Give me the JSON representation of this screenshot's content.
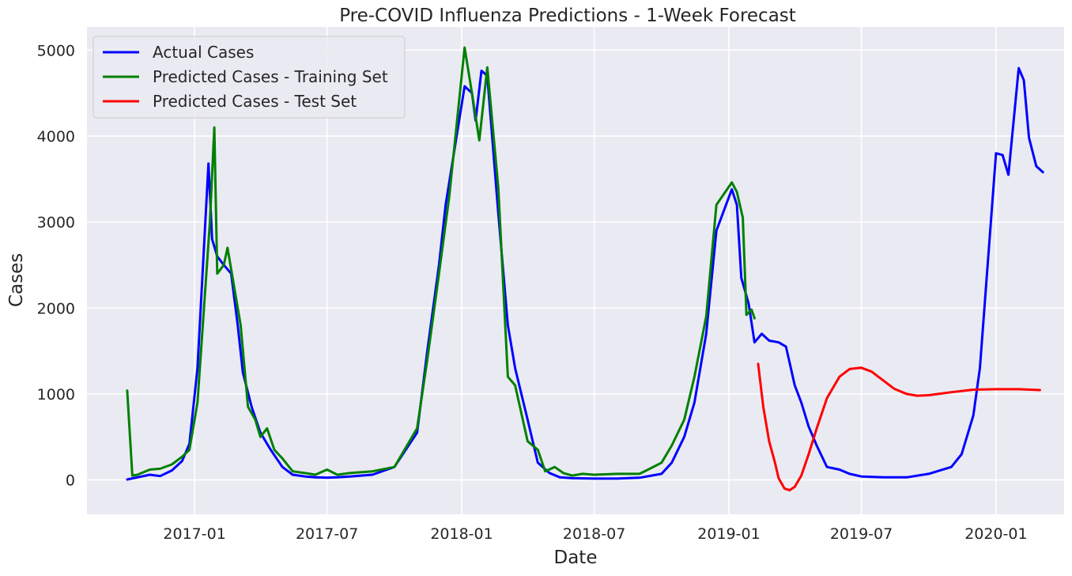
{
  "chart_data": {
    "type": "line",
    "title": "Pre-COVID Influenza Predictions - 1-Week Forecast",
    "xlabel": "Date",
    "ylabel": "Cases",
    "x_ticks": [
      "2017-01",
      "2017-07",
      "2018-01",
      "2018-07",
      "2019-01",
      "2019-07",
      "2020-01"
    ],
    "y_ticks": [
      0,
      1000,
      2000,
      3000,
      4000,
      5000
    ],
    "xlim": [
      "2016-08-07",
      "2020-04-03"
    ],
    "ylim": [
      -400,
      5270
    ],
    "grid": true,
    "background_color": "#EAEAF2",
    "legend_position": "top-left",
    "series": [
      {
        "name": "Actual Cases",
        "color": "#0000FF",
        "points": [
          [
            "2016-10-01",
            5
          ],
          [
            "2016-10-15",
            30
          ],
          [
            "2016-11-01",
            60
          ],
          [
            "2016-11-15",
            45
          ],
          [
            "2016-12-01",
            110
          ],
          [
            "2016-12-15",
            220
          ],
          [
            "2016-12-25",
            420
          ],
          [
            "2017-01-05",
            1300
          ],
          [
            "2017-01-20",
            3680
          ],
          [
            "2017-01-25",
            2800
          ],
          [
            "2017-02-01",
            2600
          ],
          [
            "2017-02-10",
            2500
          ],
          [
            "2017-02-20",
            2400
          ],
          [
            "2017-03-01",
            1800
          ],
          [
            "2017-03-08",
            1250
          ],
          [
            "2017-03-20",
            850
          ],
          [
            "2017-04-01",
            550
          ],
          [
            "2017-04-15",
            350
          ],
          [
            "2017-05-01",
            150
          ],
          [
            "2017-05-15",
            60
          ],
          [
            "2017-06-01",
            40
          ],
          [
            "2017-06-15",
            30
          ],
          [
            "2017-07-01",
            25
          ],
          [
            "2017-07-15",
            30
          ],
          [
            "2017-08-01",
            40
          ],
          [
            "2017-09-01",
            60
          ],
          [
            "2017-10-01",
            150
          ],
          [
            "2017-11-01",
            550
          ],
          [
            "2017-11-15",
            1500
          ],
          [
            "2017-12-01",
            2500
          ],
          [
            "2017-12-10",
            3200
          ],
          [
            "2018-01-05",
            4580
          ],
          [
            "2018-01-15",
            4500
          ],
          [
            "2018-01-20",
            4180
          ],
          [
            "2018-01-28",
            4760
          ],
          [
            "2018-02-05",
            4700
          ],
          [
            "2018-02-20",
            3100
          ],
          [
            "2018-03-05",
            1800
          ],
          [
            "2018-03-15",
            1300
          ],
          [
            "2018-04-01",
            700
          ],
          [
            "2018-04-15",
            200
          ],
          [
            "2018-05-01",
            80
          ],
          [
            "2018-05-15",
            30
          ],
          [
            "2018-06-01",
            20
          ],
          [
            "2018-07-01",
            15
          ],
          [
            "2018-08-01",
            15
          ],
          [
            "2018-09-01",
            25
          ],
          [
            "2018-10-01",
            70
          ],
          [
            "2018-10-15",
            200
          ],
          [
            "2018-11-01",
            500
          ],
          [
            "2018-11-15",
            900
          ],
          [
            "2018-12-01",
            1700
          ],
          [
            "2018-12-15",
            2900
          ],
          [
            "2019-01-05",
            3380
          ],
          [
            "2019-01-12",
            3200
          ],
          [
            "2019-01-18",
            2350
          ],
          [
            "2019-01-28",
            2050
          ],
          [
            "2019-02-05",
            1600
          ],
          [
            "2019-02-15",
            1700
          ],
          [
            "2019-02-25",
            1620
          ],
          [
            "2019-03-10",
            1600
          ],
          [
            "2019-03-20",
            1550
          ],
          [
            "2019-04-01",
            1100
          ],
          [
            "2019-04-10",
            900
          ],
          [
            "2019-04-20",
            620
          ],
          [
            "2019-05-01",
            400
          ],
          [
            "2019-05-15",
            150
          ],
          [
            "2019-06-01",
            120
          ],
          [
            "2019-06-15",
            70
          ],
          [
            "2019-07-01",
            40
          ],
          [
            "2019-08-01",
            30
          ],
          [
            "2019-09-01",
            30
          ],
          [
            "2019-10-01",
            70
          ],
          [
            "2019-11-01",
            150
          ],
          [
            "2019-11-15",
            300
          ],
          [
            "2019-12-01",
            750
          ],
          [
            "2019-12-10",
            1300
          ],
          [
            "2020-01-01",
            3800
          ],
          [
            "2020-01-10",
            3780
          ],
          [
            "2020-01-18",
            3550
          ],
          [
            "2020-02-01",
            4790
          ],
          [
            "2020-02-08",
            4650
          ],
          [
            "2020-02-15",
            3980
          ],
          [
            "2020-02-25",
            3650
          ],
          [
            "2020-03-05",
            3580
          ]
        ]
      },
      {
        "name": "Predicted Cases - Training Set",
        "color": "#008000",
        "points": [
          [
            "2016-10-01",
            1040
          ],
          [
            "2016-10-08",
            50
          ],
          [
            "2016-10-15",
            60
          ],
          [
            "2016-11-01",
            120
          ],
          [
            "2016-11-15",
            130
          ],
          [
            "2016-12-01",
            180
          ],
          [
            "2016-12-15",
            270
          ],
          [
            "2016-12-25",
            350
          ],
          [
            "2017-01-05",
            900
          ],
          [
            "2017-01-22",
            3000
          ],
          [
            "2017-01-28",
            4100
          ],
          [
            "2017-02-01",
            2400
          ],
          [
            "2017-02-10",
            2500
          ],
          [
            "2017-02-15",
            2700
          ],
          [
            "2017-02-25",
            2200
          ],
          [
            "2017-03-05",
            1800
          ],
          [
            "2017-03-15",
            850
          ],
          [
            "2017-03-25",
            700
          ],
          [
            "2017-04-01",
            500
          ],
          [
            "2017-04-10",
            600
          ],
          [
            "2017-04-20",
            350
          ],
          [
            "2017-05-01",
            250
          ],
          [
            "2017-05-15",
            100
          ],
          [
            "2017-06-01",
            80
          ],
          [
            "2017-06-15",
            60
          ],
          [
            "2017-07-01",
            120
          ],
          [
            "2017-07-15",
            60
          ],
          [
            "2017-08-01",
            80
          ],
          [
            "2017-09-01",
            100
          ],
          [
            "2017-10-01",
            150
          ],
          [
            "2017-11-01",
            600
          ],
          [
            "2017-11-15",
            1400
          ],
          [
            "2017-12-01",
            2400
          ],
          [
            "2017-12-15",
            3300
          ],
          [
            "2018-01-05",
            5030
          ],
          [
            "2018-01-15",
            4500
          ],
          [
            "2018-01-25",
            3950
          ],
          [
            "2018-02-05",
            4800
          ],
          [
            "2018-02-20",
            3400
          ],
          [
            "2018-03-05",
            1200
          ],
          [
            "2018-03-15",
            1100
          ],
          [
            "2018-04-01",
            450
          ],
          [
            "2018-04-15",
            350
          ],
          [
            "2018-04-25",
            100
          ],
          [
            "2018-05-08",
            150
          ],
          [
            "2018-05-20",
            80
          ],
          [
            "2018-06-01",
            50
          ],
          [
            "2018-06-15",
            70
          ],
          [
            "2018-07-01",
            60
          ],
          [
            "2018-08-01",
            70
          ],
          [
            "2018-09-01",
            70
          ],
          [
            "2018-09-15",
            130
          ],
          [
            "2018-10-01",
            200
          ],
          [
            "2018-10-15",
            400
          ],
          [
            "2018-11-01",
            700
          ],
          [
            "2018-11-15",
            1200
          ],
          [
            "2018-12-01",
            1900
          ],
          [
            "2018-12-15",
            3200
          ],
          [
            "2019-01-05",
            3460
          ],
          [
            "2019-01-12",
            3350
          ],
          [
            "2019-01-20",
            3050
          ],
          [
            "2019-01-25",
            1920
          ],
          [
            "2019-02-01",
            1980
          ],
          [
            "2019-02-05",
            1880
          ]
        ]
      },
      {
        "name": "Predicted Cases - Test Set",
        "color": "#FF0000",
        "points": [
          [
            "2019-02-10",
            1350
          ],
          [
            "2019-02-17",
            850
          ],
          [
            "2019-02-25",
            450
          ],
          [
            "2019-03-05",
            200
          ],
          [
            "2019-03-10",
            20
          ],
          [
            "2019-03-18",
            -100
          ],
          [
            "2019-03-25",
            -120
          ],
          [
            "2019-04-01",
            -80
          ],
          [
            "2019-04-10",
            50
          ],
          [
            "2019-04-20",
            300
          ],
          [
            "2019-05-01",
            600
          ],
          [
            "2019-05-15",
            950
          ],
          [
            "2019-06-01",
            1200
          ],
          [
            "2019-06-15",
            1290
          ],
          [
            "2019-07-01",
            1305
          ],
          [
            "2019-07-15",
            1260
          ],
          [
            "2019-08-01",
            1150
          ],
          [
            "2019-08-15",
            1060
          ],
          [
            "2019-09-01",
            1000
          ],
          [
            "2019-09-15",
            980
          ],
          [
            "2019-10-01",
            985
          ],
          [
            "2019-11-01",
            1020
          ],
          [
            "2019-12-01",
            1050
          ],
          [
            "2020-01-01",
            1055
          ],
          [
            "2020-02-01",
            1055
          ],
          [
            "2020-03-01",
            1045
          ]
        ]
      }
    ]
  }
}
